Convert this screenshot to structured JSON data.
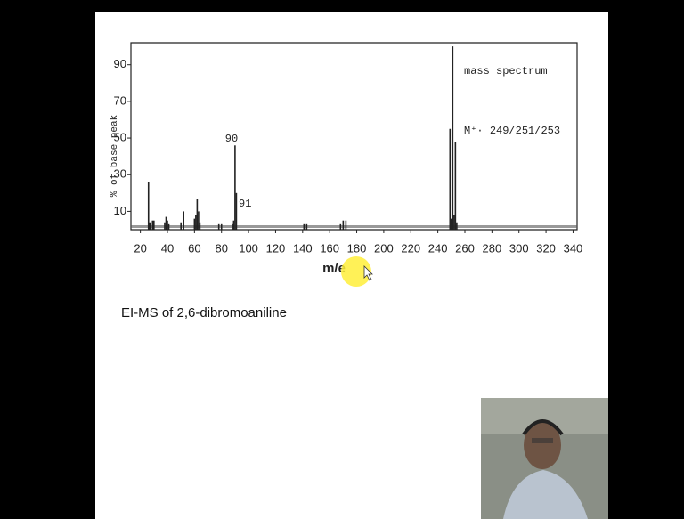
{
  "chart_data": {
    "type": "bar",
    "ylabel": "% of base peak",
    "xlabel": "m/e",
    "annotations": [
      "90",
      "91",
      "mass spectrum",
      "M⁺· 249/251/253"
    ],
    "x": [
      26,
      27,
      29,
      30,
      38,
      39,
      40,
      41,
      50,
      52,
      60,
      61,
      62,
      63,
      64,
      78,
      80,
      88,
      89,
      90,
      91,
      141,
      143,
      168,
      170,
      172,
      249,
      250,
      251,
      252,
      253,
      254
    ],
    "values": [
      26,
      4,
      5,
      5,
      4,
      7,
      5,
      3,
      4,
      10,
      6,
      8,
      17,
      10,
      4,
      3,
      3,
      3,
      5,
      46,
      20,
      3,
      3,
      3,
      5,
      5,
      55,
      6,
      100,
      8,
      48,
      4
    ],
    "color": "#222222",
    "xlim": [
      13,
      343
    ],
    "xticks": [
      20,
      40,
      60,
      80,
      100,
      120,
      140,
      160,
      180,
      200,
      220,
      240,
      260,
      280,
      300,
      320,
      340
    ],
    "ylim": [
      0,
      102
    ],
    "yticks": [
      10,
      30,
      50,
      70,
      90
    ]
  },
  "caption": "EI-MS of 2,6-dibromoaniline"
}
